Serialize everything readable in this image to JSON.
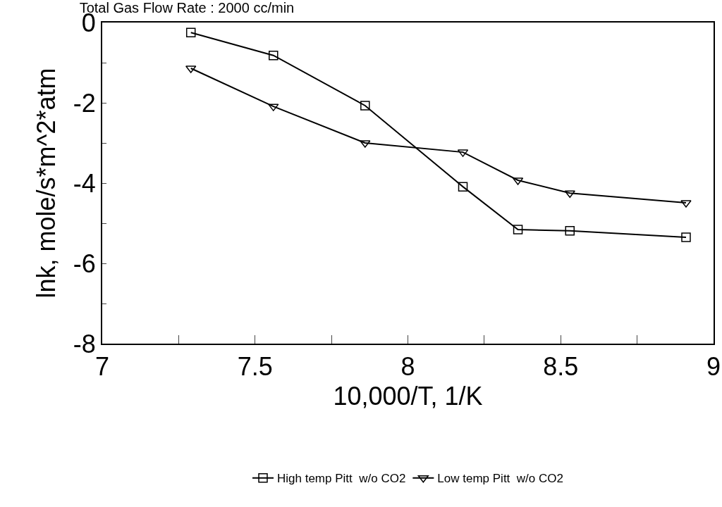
{
  "chart_data": {
    "type": "line",
    "title": "Total Gas Flow Rate : 2000 cc/min",
    "xlabel": "10,000/T, 1/K",
    "ylabel": "lnk, mole/s*m^2*atm",
    "x": [
      7.29,
      7.56,
      7.86,
      8.18,
      8.36,
      8.53,
      8.91
    ],
    "series": [
      {
        "name": "High temp Pitt  w/o CO2",
        "color": "#000000",
        "marker": "square",
        "values": [
          -0.25,
          -0.82,
          -2.07,
          -4.09,
          -5.16,
          -5.19,
          -5.35
        ]
      },
      {
        "name": "Low temp Pitt  w/o CO2",
        "color": "#000000",
        "marker": "triangle",
        "values": [
          -1.14,
          -2.09,
          -3.0,
          -3.23,
          -3.93,
          -4.25,
          -4.49
        ]
      }
    ],
    "xlim": [
      7,
      9
    ],
    "ylim": [
      -8,
      0
    ],
    "xticks": [
      7,
      {
        "value": 7.25,
        "label": null
      },
      7.5,
      {
        "value": 7.75,
        "label": null
      },
      8,
      {
        "value": 8.25,
        "label": null
      },
      8.5,
      {
        "value": 8.75,
        "label": null
      },
      9
    ],
    "yticks": [
      -8,
      {
        "value": -7,
        "label": null
      },
      -6,
      {
        "value": -5,
        "label": null
      },
      -4,
      {
        "value": -3,
        "label": null
      },
      -2,
      {
        "value": -1,
        "label": null
      },
      0
    ],
    "grid": false,
    "legend": "bottom",
    "line_style": "solid"
  }
}
